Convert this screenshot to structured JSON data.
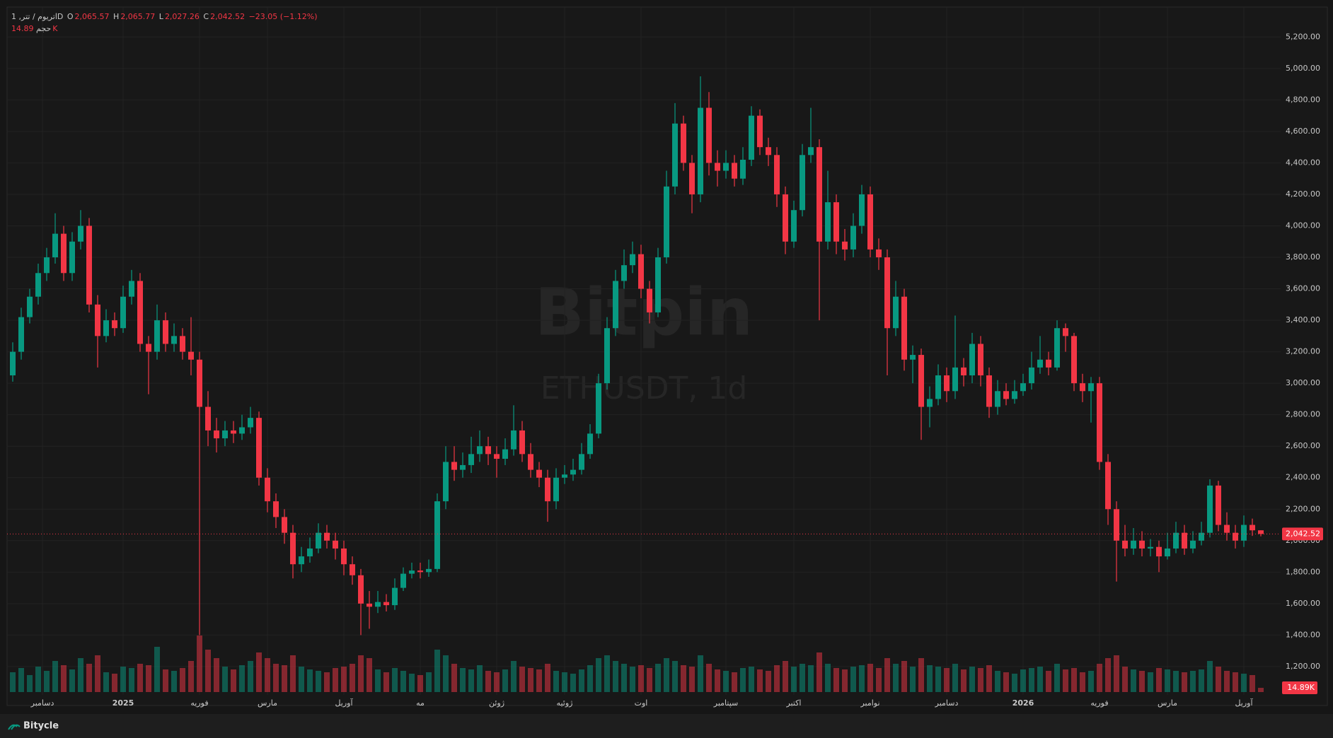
{
  "header": {
    "symbol": "اتریوم / تتر, 1D",
    "ohlc": [
      {
        "key": "O",
        "value": "2,065.57"
      },
      {
        "key": "H",
        "value": "2,065.77"
      },
      {
        "key": "L",
        "value": "2,027.26"
      },
      {
        "key": "C",
        "value": "2,042.52"
      }
    ],
    "change": "−23.05 (−1.12%)",
    "volume_title": "حجم",
    "volume_value": "14.89K"
  },
  "watermark": {
    "brand": "Bitpin",
    "pair": "ETHUSDT, 1d"
  },
  "footer": {
    "brand": "Bitycle"
  },
  "chart_data": {
    "type": "candlestick",
    "up_color": "#089981",
    "down_color": "#f23645",
    "grid": true,
    "ylim": [
      1020,
      5390
    ],
    "yticks": [
      {
        "value": 1200,
        "label": "1,200.00"
      },
      {
        "value": 1400,
        "label": "1,400.00"
      },
      {
        "value": 1600,
        "label": "1,600.00"
      },
      {
        "value": 1800,
        "label": "1,800.00"
      },
      {
        "value": 2000,
        "label": "2,000.00"
      },
      {
        "value": 2200,
        "label": "2,200.00"
      },
      {
        "value": 2400,
        "label": "2,400.00"
      },
      {
        "value": 2600,
        "label": "2,600.00"
      },
      {
        "value": 2800,
        "label": "2,800.00"
      },
      {
        "value": 3000,
        "label": "3,000.00"
      },
      {
        "value": 3200,
        "label": "3,200.00"
      },
      {
        "value": 3400,
        "label": "3,400.00"
      },
      {
        "value": 3600,
        "label": "3,600.00"
      },
      {
        "value": 3800,
        "label": "3,800.00"
      },
      {
        "value": 4000,
        "label": "4,000.00"
      },
      {
        "value": 4200,
        "label": "4,200.00"
      },
      {
        "value": 4400,
        "label": "4,400.00"
      },
      {
        "value": 4600,
        "label": "4,600.00"
      },
      {
        "value": 4800,
        "label": "4,800.00"
      },
      {
        "value": 5000,
        "label": "5,000.00"
      },
      {
        "value": 5200,
        "label": "5,200.00"
      }
    ],
    "xticks": [
      {
        "value": 3.5,
        "label": "دسامبر"
      },
      {
        "value": 13,
        "label": "2025"
      },
      {
        "value": 22,
        "label": "فوریه"
      },
      {
        "value": 30,
        "label": "مارس"
      },
      {
        "value": 39,
        "label": "آوریل"
      },
      {
        "value": 48,
        "label": "مه"
      },
      {
        "value": 57,
        "label": "ژوئن"
      },
      {
        "value": 65,
        "label": "ژوئیه"
      },
      {
        "value": 74,
        "label": "اوت"
      },
      {
        "value": 84,
        "label": "سپتامبر"
      },
      {
        "value": 92,
        "label": "اکتبر"
      },
      {
        "value": 101,
        "label": "نوامبر"
      },
      {
        "value": 110,
        "label": "دسامبر"
      },
      {
        "value": 119,
        "label": "2026"
      },
      {
        "value": 128,
        "label": "فوریه"
      },
      {
        "value": 136,
        "label": "مارس"
      },
      {
        "value": 145,
        "label": "آوریل"
      }
    ],
    "open": [
      3050,
      3200,
      3420,
      3550,
      3700,
      3800,
      3950,
      3700,
      3900,
      4000,
      3500,
      3300,
      3400,
      3350,
      3550,
      3650,
      3250,
      3200,
      3400,
      3250,
      3300,
      3200,
      3150,
      2850,
      2700,
      2650,
      2700,
      2680,
      2720,
      2780,
      2400,
      2250,
      2150,
      2050,
      1850,
      1900,
      1950,
      2050,
      2000,
      1950,
      1850,
      1780,
      1600,
      1580,
      1610,
      1590,
      1700,
      1790,
      1810,
      1800,
      1820,
      2250,
      2500,
      2450,
      2480,
      2550,
      2600,
      2550,
      2520,
      2580,
      2700,
      2550,
      2450,
      2400,
      2250,
      2400,
      2420,
      2450,
      2550,
      2680,
      3000,
      3350,
      3650,
      3750,
      3820,
      3600,
      3450,
      3800,
      4250,
      4650,
      4400,
      4200,
      4750,
      4400,
      4350,
      4400,
      4300,
      4420,
      4700,
      4500,
      4450,
      4200,
      3900,
      4100,
      4450,
      4500,
      3900,
      4150,
      3900,
      3850,
      4000,
      4200,
      3850,
      3800,
      3350,
      3550,
      3150,
      3180,
      2850,
      2900,
      3050,
      2950,
      3100,
      3050,
      3250,
      3050,
      2850,
      2950,
      2900,
      2950,
      3000,
      3100,
      3150,
      3100,
      3350,
      3300,
      3000,
      2950,
      3000,
      2500,
      2200,
      2000,
      1950,
      2000,
      1950,
      1960,
      1900,
      1950,
      2050,
      1950,
      2000,
      2050,
      2350,
      2100,
      2050,
      2000,
      2100,
      2065.57
    ],
    "high": [
      3260,
      3480,
      3600,
      3760,
      3860,
      4080,
      4000,
      3960,
      4100,
      4050,
      3560,
      3470,
      3450,
      3620,
      3720,
      3700,
      3300,
      3500,
      3450,
      3380,
      3350,
      3420,
      3200,
      2950,
      2780,
      2760,
      2760,
      2800,
      2850,
      2820,
      2460,
      2300,
      2200,
      2100,
      1960,
      2020,
      2110,
      2100,
      2050,
      2000,
      1900,
      1820,
      1680,
      1680,
      1660,
      1760,
      1830,
      1860,
      1860,
      1880,
      2300,
      2600,
      2600,
      2560,
      2660,
      2700,
      2660,
      2600,
      2650,
      2860,
      2760,
      2620,
      2500,
      2450,
      2460,
      2480,
      2520,
      2620,
      2740,
      3060,
      3420,
      3720,
      3850,
      3900,
      3880,
      3650,
      3860,
      4350,
      4780,
      4700,
      4450,
      4950,
      4850,
      4480,
      4480,
      4450,
      4500,
      4760,
      4740,
      4560,
      4500,
      4250,
      4160,
      4520,
      4750,
      4550,
      4350,
      4200,
      3980,
      4080,
      4260,
      4250,
      3920,
      3850,
      3650,
      3600,
      3240,
      3220,
      2980,
      3120,
      3100,
      3430,
      3160,
      3320,
      3300,
      3100,
      3020,
      3000,
      3020,
      3060,
      3200,
      3300,
      3200,
      3400,
      3380,
      3320,
      3060,
      3040,
      3040,
      2550,
      2250,
      2100,
      2080,
      2060,
      2010,
      2000,
      2050,
      2120,
      2100,
      2060,
      2120,
      2390,
      2380,
      2180,
      2100,
      2160,
      2140,
      2065.77
    ],
    "low": [
      3010,
      3150,
      3380,
      3500,
      3650,
      3760,
      3650,
      3650,
      3850,
      3450,
      3100,
      3260,
      3300,
      3320,
      3500,
      3200,
      2930,
      3150,
      3200,
      3200,
      3150,
      3050,
      1400,
      2600,
      2560,
      2600,
      2620,
      2640,
      2680,
      2350,
      2180,
      2080,
      1980,
      1760,
      1800,
      1860,
      1920,
      1950,
      1880,
      1780,
      1720,
      1400,
      1440,
      1540,
      1550,
      1560,
      1680,
      1760,
      1760,
      1770,
      1800,
      2200,
      2380,
      2400,
      2430,
      2500,
      2480,
      2400,
      2480,
      2540,
      2500,
      2400,
      2340,
      2120,
      2200,
      2360,
      2380,
      2420,
      2520,
      2650,
      2960,
      3300,
      3600,
      3700,
      3540,
      3380,
      3420,
      3760,
      4200,
      4350,
      4080,
      4150,
      4320,
      4250,
      4300,
      4250,
      4260,
      4380,
      4450,
      4380,
      4120,
      3820,
      3860,
      4060,
      4400,
      3400,
      3850,
      3820,
      3780,
      3800,
      3950,
      3800,
      3720,
      3050,
      3300,
      3080,
      3000,
      2640,
      2720,
      2860,
      2880,
      2900,
      2980,
      3000,
      2980,
      2780,
      2800,
      2860,
      2870,
      2920,
      2960,
      3060,
      3050,
      3080,
      3200,
      2950,
      2880,
      2750,
      2450,
      2100,
      1740,
      1900,
      1910,
      1900,
      1900,
      1800,
      1880,
      1920,
      1910,
      1920,
      1970,
      2020,
      2060,
      2000,
      1950,
      1960,
      2030,
      2027.26
    ],
    "close": [
      3200,
      3420,
      3550,
      3700,
      3800,
      3950,
      3700,
      3900,
      4000,
      3500,
      3300,
      3400,
      3350,
      3550,
      3650,
      3250,
      3200,
      3400,
      3250,
      3300,
      3200,
      3150,
      2850,
      2700,
      2650,
      2700,
      2680,
      2720,
      2780,
      2400,
      2250,
      2150,
      2050,
      1850,
      1900,
      1950,
      2050,
      2000,
      1950,
      1850,
      1780,
      1600,
      1580,
      1610,
      1590,
      1700,
      1790,
      1810,
      1800,
      1820,
      2250,
      2500,
      2450,
      2480,
      2550,
      2600,
      2550,
      2520,
      2580,
      2700,
      2550,
      2450,
      2400,
      2250,
      2400,
      2420,
      2450,
      2550,
      2680,
      3000,
      3350,
      3650,
      3750,
      3820,
      3600,
      3450,
      3800,
      4250,
      4650,
      4400,
      4200,
      4750,
      4400,
      4350,
      4400,
      4300,
      4420,
      4700,
      4500,
      4450,
      4200,
      3900,
      4100,
      4450,
      4500,
      3900,
      4150,
      3900,
      3850,
      4000,
      4200,
      3850,
      3800,
      3350,
      3550,
      3150,
      3180,
      2850,
      2900,
      3050,
      2950,
      3100,
      3050,
      3250,
      3050,
      2850,
      2950,
      2900,
      2950,
      3000,
      3100,
      3150,
      3100,
      3350,
      3300,
      3000,
      2950,
      3000,
      2500,
      2200,
      2000,
      1950,
      2000,
      1950,
      1960,
      1900,
      1950,
      2050,
      1950,
      2000,
      2050,
      2350,
      2100,
      2050,
      2000,
      2100,
      2065.57,
      2042.52
    ],
    "volume": [
      70000,
      85000,
      60000,
      90000,
      75000,
      110000,
      95000,
      80000,
      120000,
      100000,
      130000,
      70000,
      65000,
      90000,
      85000,
      100000,
      95000,
      160000,
      80000,
      75000,
      85000,
      110000,
      200000,
      150000,
      120000,
      90000,
      80000,
      95000,
      110000,
      140000,
      120000,
      100000,
      95000,
      130000,
      90000,
      80000,
      75000,
      70000,
      85000,
      90000,
      100000,
      130000,
      120000,
      80000,
      70000,
      85000,
      75000,
      65000,
      60000,
      70000,
      150000,
      130000,
      100000,
      85000,
      80000,
      95000,
      75000,
      70000,
      80000,
      110000,
      90000,
      85000,
      80000,
      100000,
      75000,
      70000,
      65000,
      80000,
      95000,
      120000,
      130000,
      110000,
      100000,
      90000,
      95000,
      85000,
      100000,
      120000,
      110000,
      95000,
      90000,
      130000,
      100000,
      80000,
      75000,
      70000,
      85000,
      90000,
      80000,
      75000,
      95000,
      110000,
      90000,
      100000,
      95000,
      140000,
      100000,
      85000,
      80000,
      90000,
      95000,
      100000,
      85000,
      120000,
      100000,
      110000,
      90000,
      120000,
      95000,
      90000,
      85000,
      100000,
      80000,
      90000,
      85000,
      95000,
      75000,
      70000,
      65000,
      80000,
      85000,
      90000,
      75000,
      100000,
      80000,
      85000,
      70000,
      75000,
      100000,
      120000,
      130000,
      90000,
      80000,
      75000,
      70000,
      85000,
      80000,
      75000,
      70000,
      75000,
      80000,
      110000,
      90000,
      75000,
      70000,
      65000,
      60000,
      14890
    ],
    "vlim": [
      0,
      250000
    ],
    "last_price_label": "2,042.52",
    "last_volume_label": "14.89K"
  }
}
